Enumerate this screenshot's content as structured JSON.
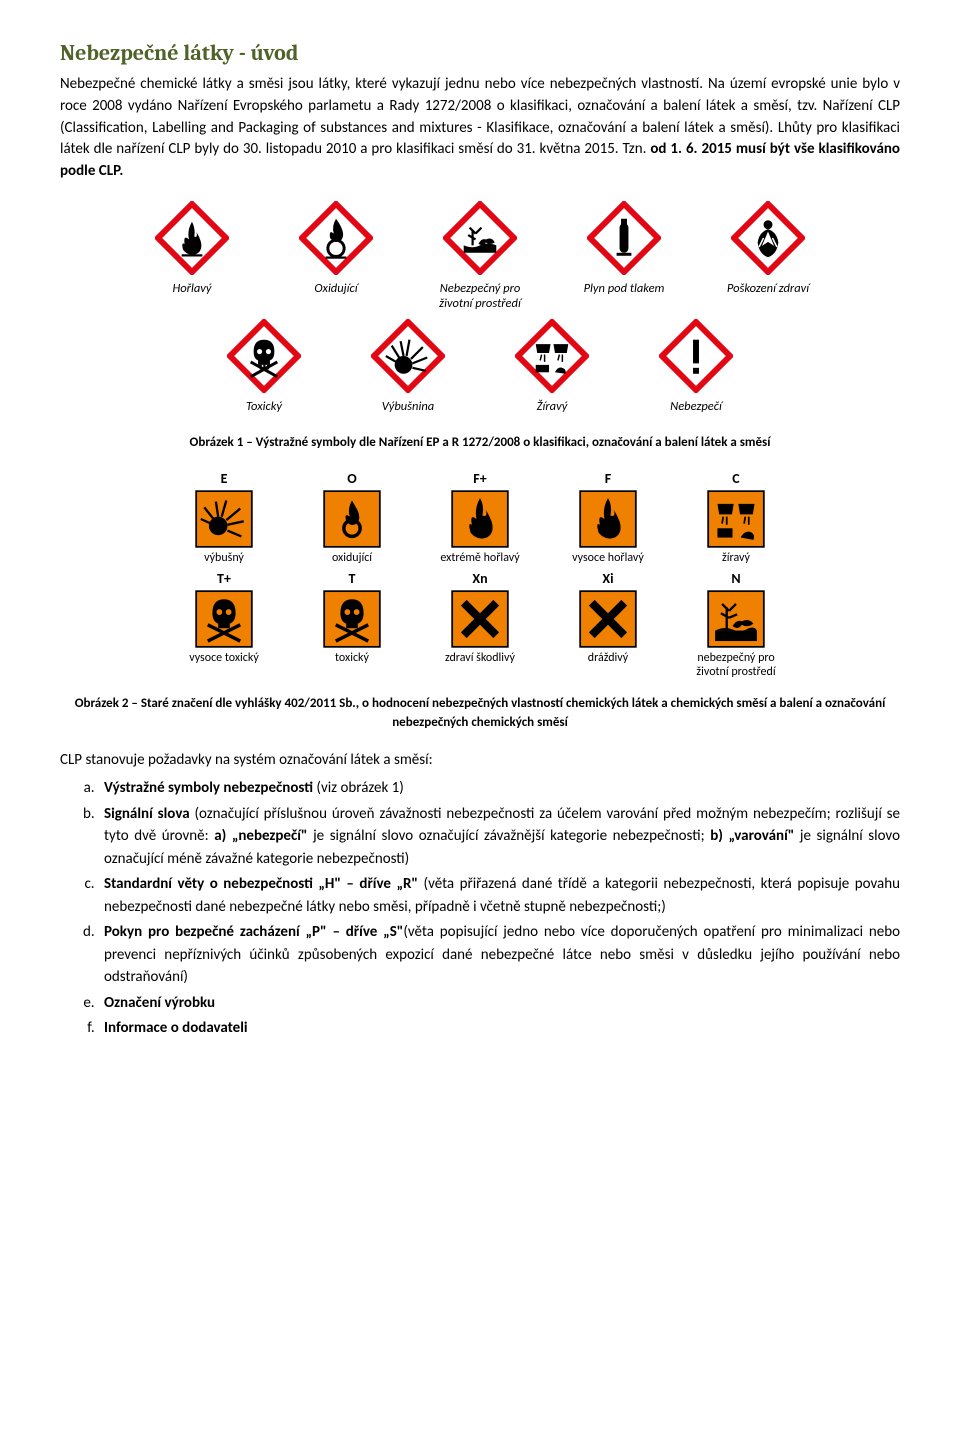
{
  "title": "Nebezpečné látky - úvod",
  "intro_paragraph": "Nebezpečné chemické látky a směsi jsou látky, které vykazují jednu nebo více nebezpečných vlastností. Na území evropské unie bylo v roce 2008 vydáno Nařízení Evropského parlametu a Rady 1272/2008 o klasifikaci, označování a balení látek a směsí, tzv. Nařízení CLP (Classification, Labelling and Packaging of substances and mixtures - Klasifikace, označování a balení látek a směsí). Lhůty pro klasifikaci látek dle nařízení CLP byly do 30. listopadu 2010 a pro klasifikaci směsí do 31. května 2015. Tzn. od 1. 6. 2015 musí být vše klasifikováno podle CLP.",
  "intro_bold_tail": "od 1. 6. 2015 musí být vše klasifikováno podle CLP.",
  "clp_pictograms": {
    "row1": [
      {
        "name": "flame-icon",
        "label": "Hořlavý"
      },
      {
        "name": "flame-over-circle-icon",
        "label": "Oxidující"
      },
      {
        "name": "environment-icon",
        "label": "Nebezpečný pro\nživotní prostředí"
      },
      {
        "name": "gas-cylinder-icon",
        "label": "Plyn pod tlakem"
      },
      {
        "name": "health-hazard-icon",
        "label": "Poškození zdraví"
      }
    ],
    "row2": [
      {
        "name": "skull-icon",
        "label": "Toxický"
      },
      {
        "name": "exploding-bomb-icon",
        "label": "Výbušnina"
      },
      {
        "name": "corrosion-icon",
        "label": "Žíravý"
      },
      {
        "name": "exclamation-icon",
        "label": "Nebezpečí"
      }
    ]
  },
  "caption1_prefix": "Obrázek 1 – Výstražné symboly dle Nařízení EP a R 1272/2008 ",
  "caption1_bold": "o klasifikaci, označování a balení látek a směsí",
  "old_pictograms": {
    "row1": [
      {
        "code": "E",
        "name": "old-explosive-icon",
        "label": "výbušný"
      },
      {
        "code": "O",
        "name": "old-oxidizing-icon",
        "label": "oxidující"
      },
      {
        "code": "F+",
        "name": "old-flammable-plus-icon",
        "label": "extrémě hořlavý"
      },
      {
        "code": "F",
        "name": "old-flammable-icon",
        "label": "vysoce hořlavý"
      },
      {
        "code": "C",
        "name": "old-corrosive-icon",
        "label": "žíravý"
      }
    ],
    "row2": [
      {
        "code": "T+",
        "name": "old-toxic-plus-icon",
        "label": "vysoce toxický"
      },
      {
        "code": "T",
        "name": "old-toxic-icon",
        "label": "toxický"
      },
      {
        "code": "Xn",
        "name": "old-harmful-icon",
        "label": "zdraví škodlivý"
      },
      {
        "code": "Xi",
        "name": "old-irritant-icon",
        "label": "dráždivý"
      },
      {
        "code": "N",
        "name": "old-environment-icon",
        "label": "nebezpečný pro\nživotní prostředí"
      }
    ]
  },
  "caption2": "Obrázek 2 – Staré značení dle vyhlášky 402/2011 Sb., o hodnocení nebezpečných vlastností chemických látek a chemických směsí a balení a označování nebezpečných chemických směsí",
  "clp_intro": "CLP stanovuje požadavky na systém označování látek a směsí:",
  "list_items": {
    "a": {
      "lead": "Výstražné symboly nebezpečnosti",
      "rest": " (viz obrázek 1)"
    },
    "b": {
      "lead": "Signální slova",
      "rest": " (označující příslušnou úroveň závažnosti nebezpečnosti za účelem varování před možným nebezpečím; rozlišují se tyto dvě úrovně: ",
      "b1": "a) „nebezpečí\"",
      "mid1": " je signální slovo označující závažnější kategorie nebezpečnosti; ",
      "b2": "b) „varování\"",
      "mid2": " je signální slovo označující méně závažné kategorie nebezpečnosti)"
    },
    "c": {
      "lead": "Standardní věty o nebezpečnosti „H\" – dříve „R\"",
      "rest": " (věta přiřazená dané třídě a kategorii nebezpečnosti, která popisuje povahu nebezpečnosti dané nebezpečné látky nebo směsi, případně i včetně stupně nebezpečnosti;)"
    },
    "d": {
      "lead": "Pokyn pro bezpečné zacházení „P\" – dříve „S\"",
      "rest": "(věta popisující jedno nebo více doporučených opatření pro minimalizaci nebo prevenci nepříznivých účinků způsobených expozicí dané nebezpečné látce nebo směsi v důsledku jejího používání nebo odstraňování)"
    },
    "e": {
      "lead": "Označení výrobku",
      "rest": ""
    },
    "f": {
      "lead": "Informace o dodavateli",
      "rest": ""
    }
  },
  "colors": {
    "diamond_border": "#e30613",
    "diamond_fill": "#ffffff",
    "old_fill": "#f08000",
    "old_border": "#000000",
    "heading": "#4f6228"
  }
}
